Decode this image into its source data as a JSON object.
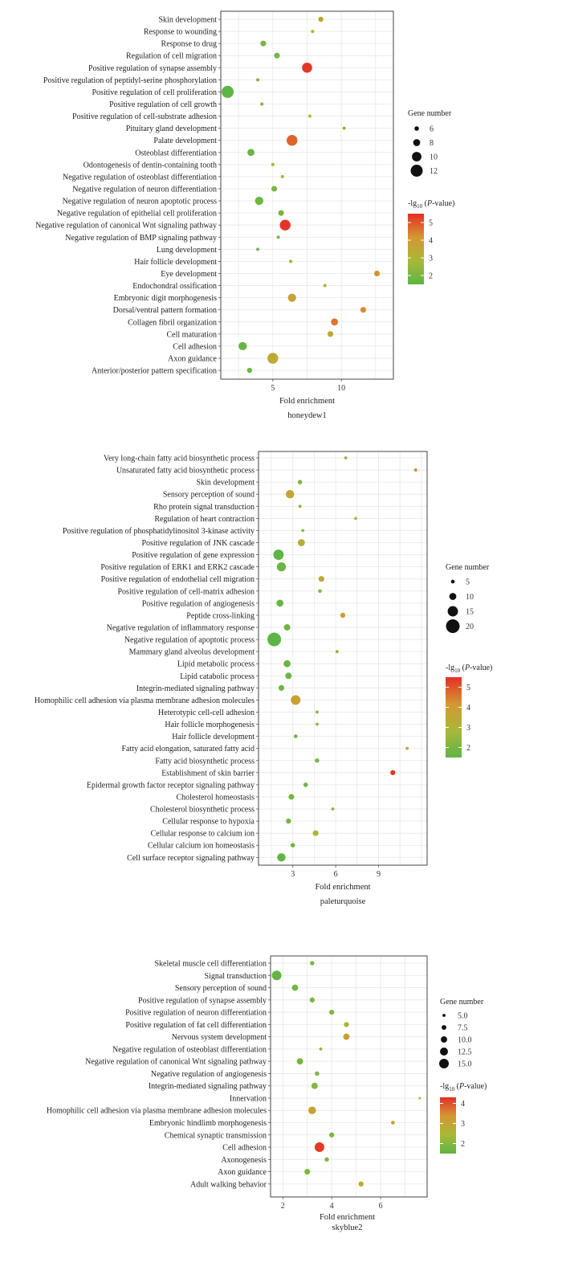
{
  "colors": {
    "low": "#5cb545",
    "mid": "#a9b838",
    "mid2": "#d49732",
    "high": "#e52e26",
    "panel_border": "#444444",
    "grid": "#e8e8e8"
  },
  "legend_text": {
    "size_title": "Gene number",
    "color_title_prefix": "-lg",
    "color_title_sub": "10",
    "color_title_open": " (",
    "color_title_p": "P",
    "color_title_close": "-value)"
  },
  "chart_data": [
    {
      "type": "scatter",
      "title": "",
      "subtitle": "honeydew1",
      "xlabel": "Fold enrichment",
      "xlim": [
        1.2,
        13.8
      ],
      "xticks": [
        5,
        10
      ],
      "size_legend": [
        6,
        8,
        10,
        12
      ],
      "size_range": [
        5,
        12
      ],
      "color_legend": [
        2,
        3,
        4,
        5
      ],
      "color_range": [
        1.5,
        5.5
      ],
      "categories": [
        "Skin development",
        "Response to wounding",
        "Response to drug",
        "Regulation of cell migration",
        "Positive regulation of synapse assembly",
        "Positive regulation of peptidyl-serine phosphorylation",
        "Positive regulation of cell proliferation",
        "Positive regulation of cell growth",
        "Positive regulation of cell-substrate adhesion",
        "Pituitary gland development",
        "Palate development",
        "Osteoblast differentiation",
        "Odontogenesis of dentin-containing tooth",
        "Negative regulation of osteoblast differentiation",
        "Negative regulation of neuron differentiation",
        "Negative regulation of neuron apoptotic process",
        "Negative regulation of epithelial cell proliferation",
        "Negative regulation of canonical Wnt signaling pathway",
        "Negative regulation of BMP signaling pathway",
        "Lung development",
        "Hair follicle development",
        "Eye development",
        "Endochondral ossification",
        "Embryonic digit morphogenesis",
        "Dorsal/ventral pattern formation",
        "Collagen fibril organization",
        "Cell maturation",
        "Cell adhesion",
        "Axon guidance",
        "Anterior/posterior pattern specification"
      ],
      "x": [
        8.5,
        7.9,
        4.3,
        5.3,
        7.5,
        3.9,
        1.7,
        4.2,
        7.7,
        10.2,
        6.4,
        3.4,
        5.0,
        5.7,
        5.1,
        4.0,
        5.6,
        5.9,
        5.4,
        3.9,
        6.3,
        12.6,
        8.8,
        6.4,
        11.6,
        9.5,
        9.2,
        2.8,
        5.0,
        3.3
      ],
      "genes": [
        6.5,
        5,
        7,
        7,
        10.5,
        5,
        12.5,
        5,
        5,
        5,
        11,
        8,
        5,
        5,
        7,
        9,
        7,
        11,
        5,
        5,
        5,
        7,
        5,
        9,
        7,
        8,
        7,
        9,
        11,
        6.5
      ],
      "logp": [
        3.6,
        2.8,
        2.0,
        2.0,
        5.4,
        2.0,
        1.5,
        2.0,
        2.8,
        2.5,
        4.8,
        1.7,
        2.6,
        2.8,
        2.0,
        1.8,
        2.0,
        5.4,
        2.0,
        2.0,
        2.6,
        4.2,
        3.2,
        3.7,
        4.3,
        4.6,
        3.5,
        1.7,
        3.5,
        1.8
      ]
    },
    {
      "type": "scatter",
      "title": "",
      "subtitle": "paleturquoise",
      "xlabel": "Fold enrichment",
      "xlim": [
        0.6,
        12.4
      ],
      "xticks": [
        3,
        6,
        9
      ],
      "size_legend": [
        5,
        10,
        15,
        20
      ],
      "size_range": [
        3,
        20
      ],
      "color_legend": [
        2,
        3,
        4,
        5
      ],
      "color_range": [
        1.5,
        5.5
      ],
      "categories": [
        "Very long-chain fatty acid biosynthetic process",
        "Unsaturated fatty acid biosynthetic process",
        "Skin development",
        "Sensory perception of sound",
        "Rho protein signal transduction",
        "Regulation of heart contraction",
        "Positive regulation of phosphatidylinositol 3-kinase activity",
        "Positive regulation of JNK cascade",
        "Positive regulation of gene expression",
        "Positive regulation of ERK1 and ERK2 cascade",
        "Positive regulation of endothelial cell migration",
        "Positive regulation of cell-matrix adhesion",
        "Positive regulation of angiogenesis",
        "Peptide cross-linking",
        "Negative regulation of inflammatory response",
        "Negative regulation of apoptotic process",
        "Mammary gland alveolus development",
        "Lipid metabolic process",
        "Lipid catabolic process",
        "Integrin-mediated signaling pathway",
        "Homophilic cell adhesion via plasma membrane adhesion molecules",
        "Heterotypic cell-cell adhesion",
        "Hair follicle morphogenesis",
        "Hair follicle development",
        "Fatty acid elongation, saturated fatty acid",
        "Fatty acid biosynthetic process",
        "Establishment of skin barrier",
        "Epidermal growth factor receptor signaling pathway",
        "Cholesterol homeostasis",
        "Cholesterol biosynthetic process",
        "Cellular response to hypoxia",
        "Cellular response to calcium ion",
        "Cellular calcium ion homeostasis",
        "Cell surface receptor signaling pathway"
      ],
      "x": [
        6.7,
        11.6,
        3.5,
        2.8,
        3.5,
        7.4,
        3.7,
        3.6,
        2.0,
        2.2,
        5.0,
        4.9,
        2.1,
        6.5,
        2.6,
        1.7,
        6.1,
        2.6,
        2.7,
        2.2,
        3.2,
        4.7,
        4.7,
        3.2,
        11.0,
        4.7,
        10.0,
        3.9,
        2.9,
        5.8,
        2.7,
        4.6,
        3.0,
        2.2
      ],
      "genes": [
        4,
        4,
        6,
        12,
        4,
        4,
        4,
        10,
        15,
        13,
        8,
        5,
        10,
        7,
        9,
        20,
        4,
        10,
        9,
        8,
        14,
        4,
        4,
        5,
        4,
        6,
        7,
        6,
        8,
        4,
        7,
        8,
        6,
        12
      ],
      "logp": [
        2.5,
        4.5,
        2.0,
        3.6,
        2.2,
        2.8,
        2.4,
        3.2,
        1.5,
        1.7,
        3.6,
        2.2,
        1.7,
        4.1,
        1.8,
        1.5,
        2.2,
        1.8,
        1.8,
        1.8,
        3.8,
        2.2,
        2.4,
        1.8,
        3.8,
        2.0,
        5.4,
        1.8,
        1.9,
        2.3,
        1.8,
        3.0,
        1.8,
        1.6
      ]
    },
    {
      "type": "scatter",
      "title": "",
      "subtitle": "skyblue2",
      "xlabel": "Fold enrichment",
      "xlim": [
        1.5,
        7.9
      ],
      "xticks": [
        2,
        4,
        6
      ],
      "size_legend": [
        5.0,
        7.5,
        10.0,
        12.5,
        15.0
      ],
      "size_range": [
        4,
        15
      ],
      "color_legend": [
        2,
        3,
        4
      ],
      "color_range": [
        1.5,
        4.3
      ],
      "categories": [
        "Skeletal muscle cell differentiation",
        "Signal transduction",
        "Sensory perception of sound",
        "Positive regulation of synapse assembly",
        "Positive regulation of neuron differentiation",
        "Positive regulation of fat cell differentiation",
        "Nervous system development",
        "Negative regulation of osteoblast differentiation",
        "Negative regulation of canonical Wnt signaling pathway",
        "Negative regulation of angiogenesis",
        "Integrin-mediated signaling pathway",
        "Innervation",
        "Homophilic cell adhesion via plasma membrane adhesion molecules",
        "Embryonic hindlimb morphogenesis",
        "Chemical synaptic transmission",
        "Cell adhesion",
        "Axonogenesis",
        "Axon guidance",
        "Adult walking behavior"
      ],
      "x": [
        3.2,
        1.75,
        2.5,
        3.2,
        4.0,
        4.6,
        4.6,
        3.55,
        2.7,
        3.4,
        3.3,
        7.6,
        3.2,
        6.5,
        4.0,
        3.5,
        3.8,
        3.0,
        5.2
      ],
      "genes": [
        7,
        15,
        10,
        8,
        8,
        8,
        10,
        5,
        10,
        7,
        10,
        4,
        12,
        6,
        8,
        15,
        7,
        9,
        8
      ],
      "logp": [
        1.9,
        1.6,
        1.8,
        1.9,
        1.9,
        2.6,
        3.1,
        2.1,
        1.8,
        1.9,
        2.0,
        2.4,
        3.0,
        3.3,
        1.9,
        4.2,
        1.9,
        1.9,
        2.9
      ]
    }
  ]
}
